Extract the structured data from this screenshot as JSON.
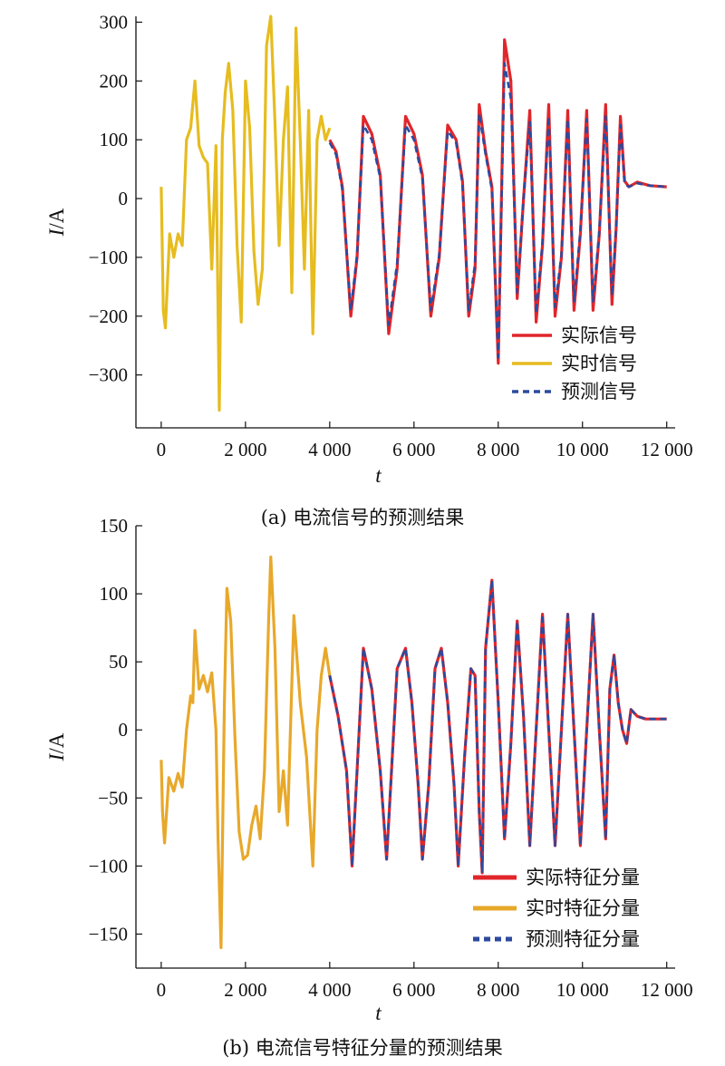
{
  "chart_data": [
    {
      "type": "line",
      "caption": "(a) 电流信号的预测结果",
      "xlabel": "t",
      "ylabel_italic": "I",
      "ylabel_unit": "/A",
      "xlim": [
        -600,
        12200
      ],
      "ylim": [
        -390,
        310
      ],
      "xticks": [
        0,
        2000,
        4000,
        6000,
        8000,
        10000,
        12000
      ],
      "xtick_labels": [
        "0",
        "2 000",
        "4 000",
        "6 000",
        "8 000",
        "10 000",
        "12 000"
      ],
      "yticks": [
        -300,
        -200,
        -100,
        0,
        100,
        200,
        300
      ],
      "ytick_labels": [
        "−300",
        "−200",
        "−100",
        "0",
        "100",
        "200",
        "300"
      ],
      "legend_position": "bottom-right",
      "series": [
        {
          "name": "实际信号",
          "color": "#e0262b",
          "style": "solid",
          "x": [
            4000,
            4150,
            4300,
            4500,
            4650,
            4800,
            5000,
            5200,
            5400,
            5600,
            5800,
            6000,
            6200,
            6400,
            6600,
            6800,
            7000,
            7150,
            7300,
            7450,
            7550,
            7700,
            7850,
            8000,
            8150,
            8300,
            8450,
            8600,
            8750,
            8900,
            9050,
            9200,
            9350,
            9500,
            9650,
            9800,
            9950,
            10100,
            10250,
            10400,
            10550,
            10700,
            10800,
            10900,
            11000,
            11100,
            11300,
            11600,
            12000
          ],
          "y": [
            100,
            80,
            20,
            -200,
            -100,
            140,
            110,
            40,
            -230,
            -120,
            140,
            110,
            40,
            -200,
            -100,
            125,
            100,
            30,
            -200,
            -120,
            160,
            80,
            20,
            -280,
            270,
            200,
            -170,
            0,
            150,
            -210,
            -80,
            160,
            -200,
            -100,
            150,
            -190,
            -60,
            150,
            -190,
            -60,
            160,
            -180,
            -50,
            140,
            30,
            20,
            28,
            22,
            20
          ]
        },
        {
          "name": "实时信号",
          "color": "#e6bc1f",
          "style": "solid",
          "x": [
            0,
            50,
            100,
            200,
            300,
            400,
            500,
            600,
            700,
            800,
            900,
            1000,
            1100,
            1200,
            1300,
            1380,
            1450,
            1520,
            1600,
            1700,
            1800,
            1900,
            2000,
            2100,
            2200,
            2300,
            2400,
            2500,
            2600,
            2700,
            2800,
            2900,
            3000,
            3100,
            3200,
            3300,
            3400,
            3500,
            3600,
            3700,
            3800,
            3900,
            4000
          ],
          "y": [
            20,
            -190,
            -220,
            -60,
            -100,
            -60,
            -80,
            100,
            120,
            200,
            90,
            70,
            60,
            -120,
            90,
            -360,
            100,
            180,
            230,
            150,
            -80,
            -210,
            200,
            120,
            -90,
            -180,
            -120,
            260,
            310,
            130,
            -80,
            100,
            190,
            -160,
            290,
            100,
            -120,
            150,
            -230,
            100,
            140,
            100,
            120
          ]
        },
        {
          "name": "预测信号",
          "color": "#2c4a9e",
          "style": "dashed",
          "x": [
            4000,
            4150,
            4300,
            4500,
            4650,
            4800,
            5000,
            5200,
            5400,
            5600,
            5800,
            6000,
            6200,
            6400,
            6600,
            6800,
            7000,
            7150,
            7300,
            7450,
            7550,
            7700,
            7850,
            8000,
            8150,
            8300,
            8450,
            8600,
            8750,
            8900,
            9050,
            9200,
            9350,
            9500,
            9650,
            9800,
            9950,
            10100,
            10250,
            10400,
            10550,
            10700,
            10800,
            10900,
            11000,
            11100,
            11300,
            11600,
            12000
          ],
          "y": [
            95,
            75,
            15,
            -190,
            -95,
            125,
            100,
            35,
            -215,
            -110,
            125,
            100,
            35,
            -190,
            -95,
            115,
            95,
            25,
            -190,
            -110,
            145,
            75,
            15,
            -270,
            230,
            170,
            -160,
            0,
            130,
            -195,
            -75,
            140,
            -185,
            -95,
            135,
            -175,
            -55,
            135,
            -175,
            -55,
            140,
            -165,
            -45,
            125,
            25,
            20,
            26,
            22,
            20
          ]
        }
      ]
    },
    {
      "type": "line",
      "caption": "(b) 电流信号特征分量的预测结果",
      "xlabel": "t",
      "ylabel_italic": "I",
      "ylabel_unit": "/A",
      "xlim": [
        -600,
        12200
      ],
      "ylim": [
        -175,
        150
      ],
      "xticks": [
        0,
        2000,
        4000,
        6000,
        8000,
        10000,
        12000
      ],
      "xtick_labels": [
        "0",
        "2 000",
        "4 000",
        "6 000",
        "8 000",
        "10 000",
        "12 000"
      ],
      "yticks": [
        -150,
        -100,
        -50,
        0,
        50,
        100,
        150
      ],
      "ytick_labels": [
        "−150",
        "−100",
        "−50",
        "0",
        "50",
        "100",
        "150"
      ],
      "legend_position": "bottom-right",
      "series": [
        {
          "name": "实际特征分量",
          "color": "#e0262b",
          "style": "solid",
          "x": [
            4000,
            4200,
            4400,
            4530,
            4650,
            4800,
            5000,
            5200,
            5350,
            5450,
            5600,
            5800,
            5950,
            6100,
            6200,
            6350,
            6500,
            6650,
            6800,
            6950,
            7050,
            7200,
            7350,
            7450,
            7550,
            7620,
            7700,
            7850,
            8000,
            8150,
            8300,
            8450,
            8600,
            8750,
            8900,
            9050,
            9200,
            9350,
            9500,
            9650,
            9800,
            9950,
            10100,
            10250,
            10400,
            10550,
            10650,
            10750,
            10850,
            10950,
            11050,
            11150,
            11300,
            11500,
            11800,
            12000
          ],
          "y": [
            40,
            10,
            -30,
            -100,
            -30,
            60,
            30,
            -30,
            -95,
            -40,
            45,
            60,
            20,
            -40,
            -95,
            -40,
            45,
            60,
            20,
            -40,
            -100,
            -20,
            45,
            40,
            -60,
            -105,
            60,
            110,
            20,
            -80,
            -10,
            80,
            10,
            -85,
            0,
            85,
            0,
            -85,
            0,
            85,
            0,
            -85,
            0,
            85,
            0,
            -80,
            30,
            55,
            20,
            0,
            -10,
            15,
            10,
            8,
            8,
            8
          ]
        },
        {
          "name": "实时特征分量",
          "color": "#e8a82a",
          "style": "solid",
          "x": [
            0,
            30,
            80,
            180,
            300,
            400,
            500,
            600,
            700,
            750,
            800,
            900,
            1000,
            1100,
            1200,
            1300,
            1350,
            1420,
            1500,
            1560,
            1650,
            1750,
            1850,
            1950,
            2050,
            2150,
            2250,
            2350,
            2450,
            2550,
            2600,
            2700,
            2800,
            2900,
            3000,
            3150,
            3300,
            3450,
            3600,
            3700,
            3800,
            3900,
            4000
          ],
          "y": [
            -22,
            -60,
            -83,
            -35,
            -45,
            -32,
            -42,
            0,
            25,
            20,
            73,
            30,
            40,
            28,
            42,
            0,
            -80,
            -160,
            20,
            104,
            80,
            -5,
            -75,
            -95,
            -92,
            -70,
            -56,
            -80,
            -30,
            80,
            127,
            60,
            -60,
            -30,
            -70,
            84,
            20,
            -20,
            -100,
            0,
            40,
            60,
            40
          ]
        },
        {
          "name": "预测特征分量",
          "color": "#2c4a9e",
          "style": "dashed",
          "x": [
            4000,
            4200,
            4400,
            4530,
            4650,
            4800,
            5000,
            5200,
            5350,
            5450,
            5600,
            5800,
            5950,
            6100,
            6200,
            6350,
            6500,
            6650,
            6800,
            6950,
            7050,
            7200,
            7350,
            7450,
            7550,
            7620,
            7700,
            7850,
            8000,
            8150,
            8300,
            8450,
            8600,
            8750,
            8900,
            9050,
            9200,
            9350,
            9500,
            9650,
            9800,
            9950,
            10100,
            10250,
            10400,
            10550,
            10650,
            10750,
            10850,
            10950,
            11050,
            11150,
            11300,
            11500,
            11800,
            12000
          ],
          "y": [
            40,
            10,
            -30,
            -100,
            -30,
            60,
            30,
            -30,
            -95,
            -40,
            45,
            60,
            20,
            -40,
            -95,
            -40,
            45,
            60,
            20,
            -40,
            -100,
            -20,
            45,
            40,
            -60,
            -105,
            60,
            110,
            20,
            -80,
            -10,
            80,
            10,
            -85,
            0,
            85,
            0,
            -85,
            0,
            85,
            0,
            -85,
            0,
            85,
            0,
            -80,
            30,
            55,
            20,
            0,
            -10,
            15,
            10,
            8,
            8,
            8
          ]
        }
      ]
    }
  ]
}
